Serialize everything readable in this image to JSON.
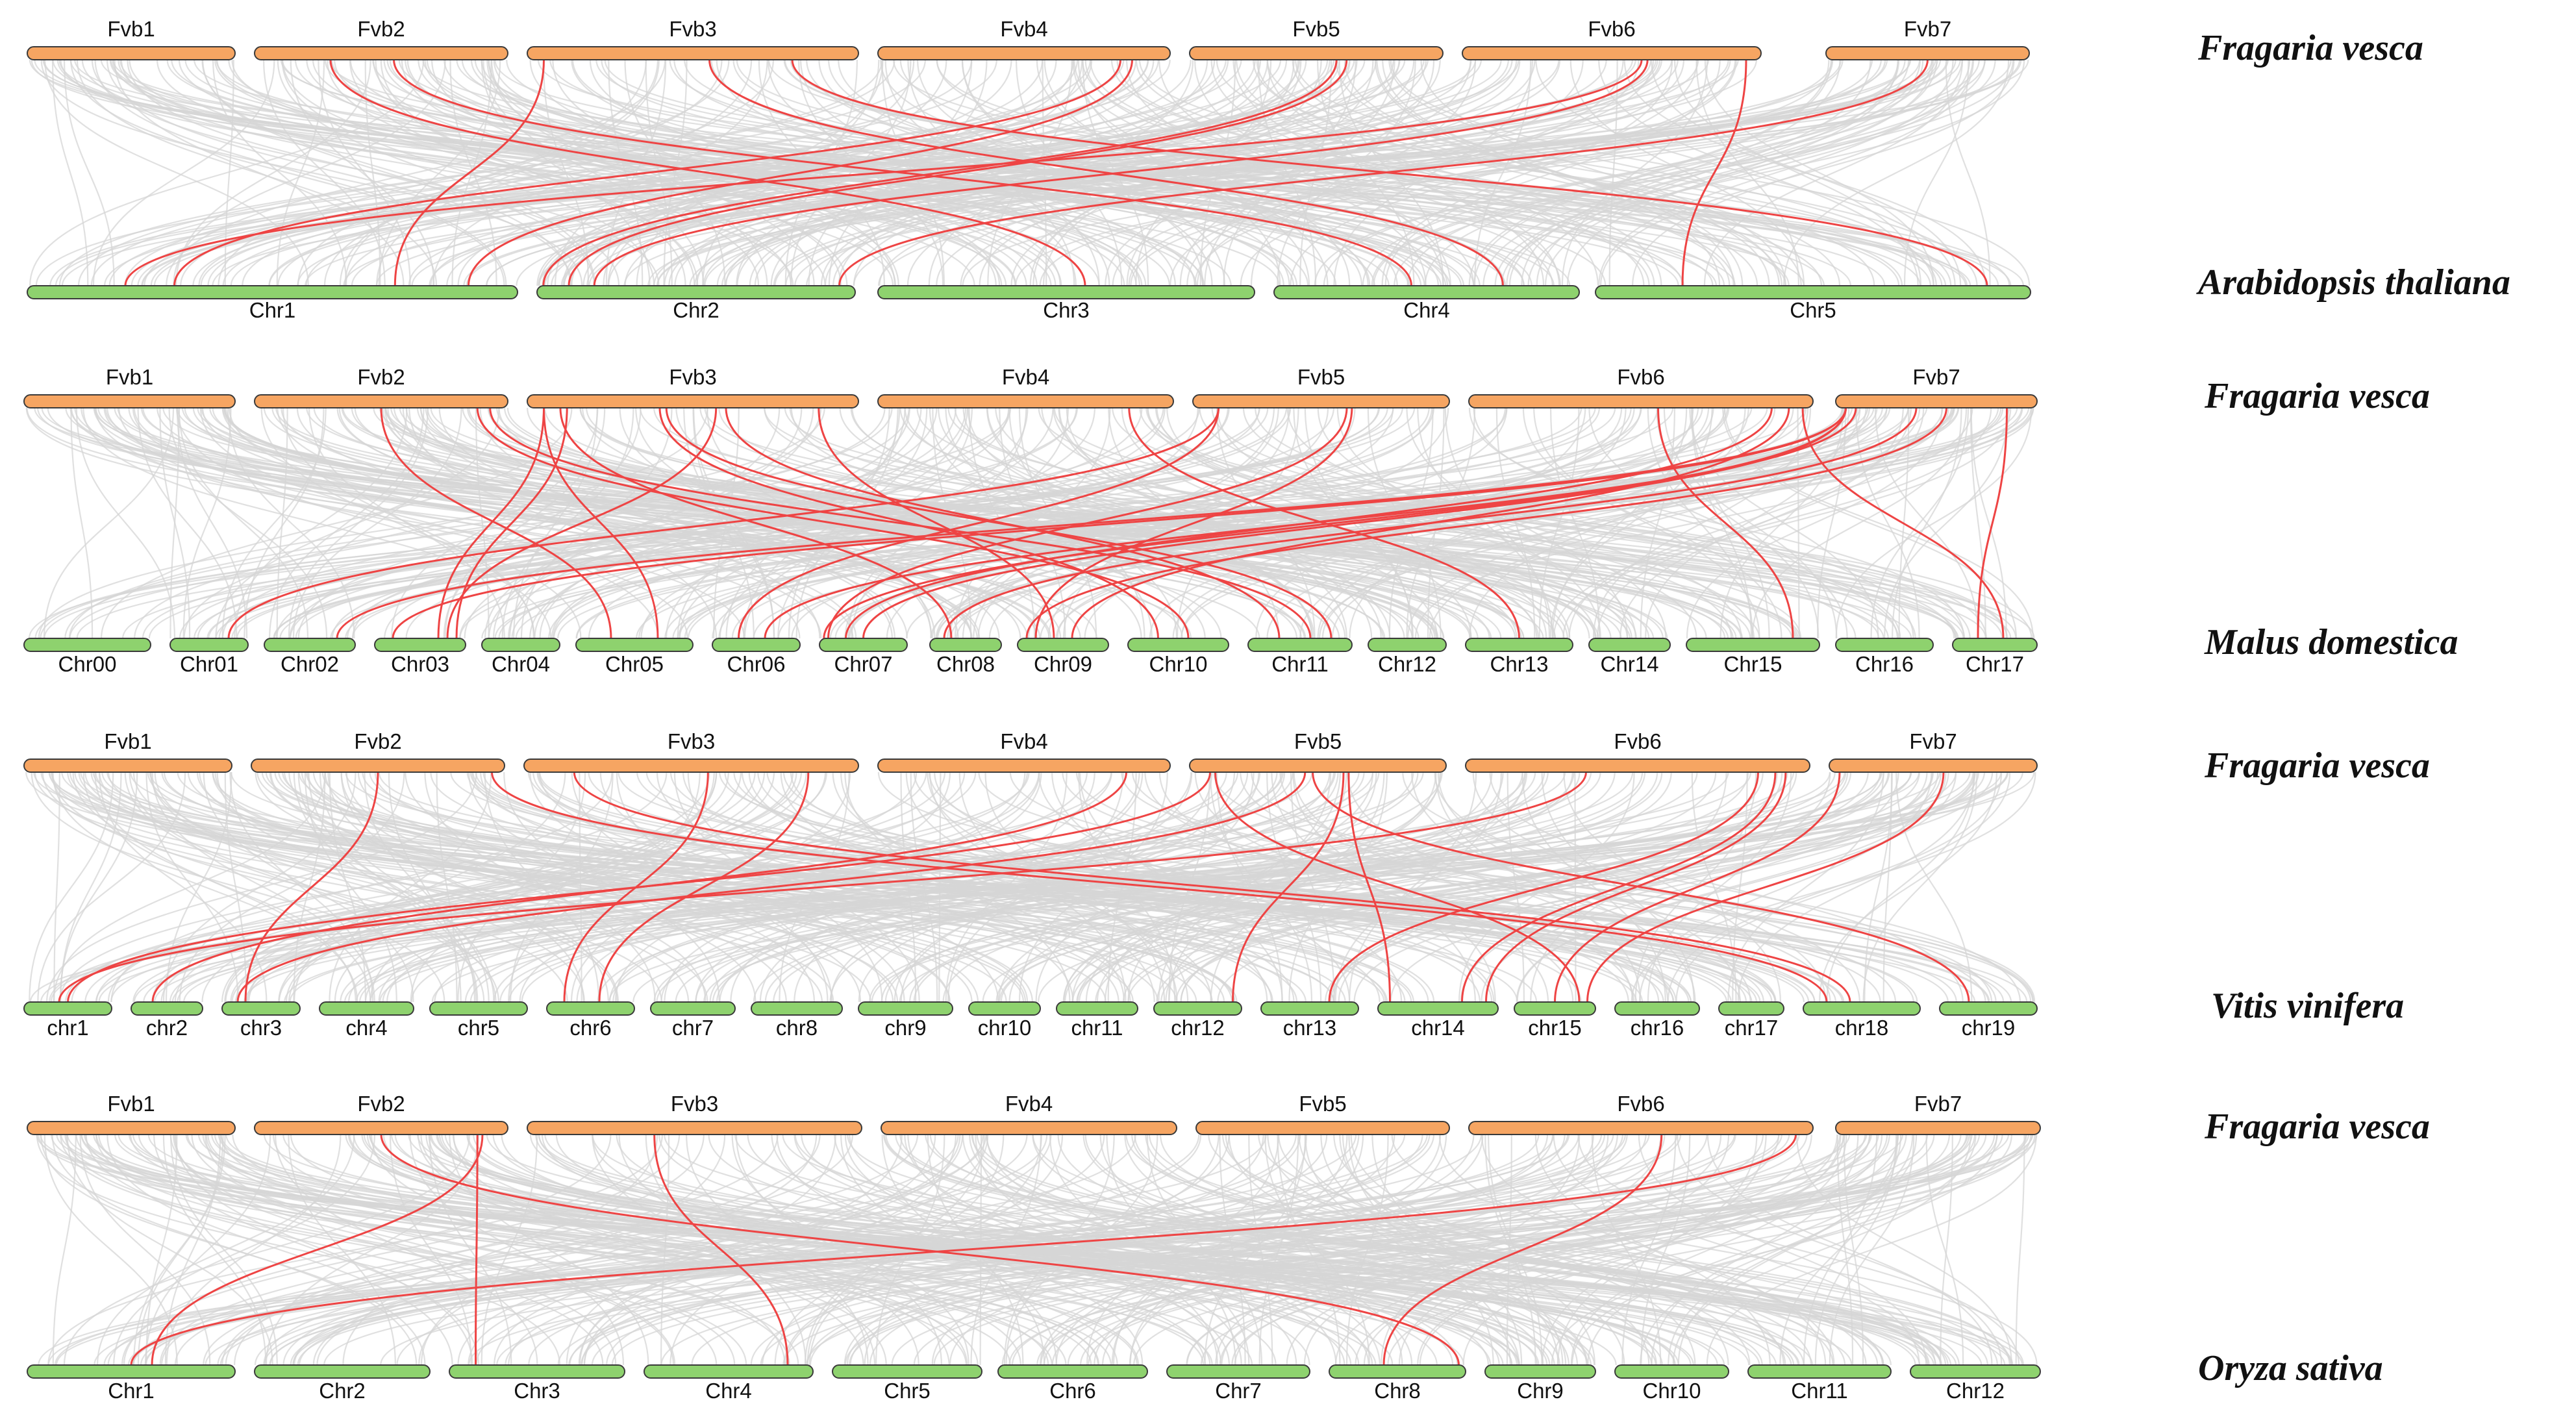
{
  "colors": {
    "top_bar": "#F6A562",
    "bottom_bar": "#8ED26E",
    "bar_outline": "#3a3a3a",
    "background_link": "#d6d6d6",
    "highlight_link": "#EE4444"
  },
  "panels": [
    {
      "top_species": "Fragaria vesca",
      "bottom_species": "Arabidopsis thaliana",
      "top_chromosomes": [
        "Fvb1",
        "Fvb2",
        "Fvb3",
        "Fvb4",
        "Fvb5",
        "Fvb6",
        "Fvb7"
      ],
      "bottom_chromosomes": [
        "Chr1",
        "Chr2",
        "Chr3",
        "Chr4",
        "Chr5"
      ],
      "links": [
        {
          "from": "Fvb2",
          "from_pos": 0.3,
          "to": "Chr3",
          "to_pos": 0.55
        },
        {
          "from": "Fvb2",
          "from_pos": 0.55,
          "to": "Chr4",
          "to_pos": 0.45
        },
        {
          "from": "Fvb3",
          "from_pos": 0.05,
          "to": "Chr1",
          "to_pos": 0.75
        },
        {
          "from": "Fvb3",
          "from_pos": 0.55,
          "to": "Chr4",
          "to_pos": 0.75
        },
        {
          "from": "Fvb3",
          "from_pos": 0.8,
          "to": "Chr5",
          "to_pos": 0.9
        },
        {
          "from": "Fvb4",
          "from_pos": 0.83,
          "to": "Chr1",
          "to_pos": 0.3
        },
        {
          "from": "Fvb4",
          "from_pos": 0.87,
          "to": "Chr1",
          "to_pos": 0.9
        },
        {
          "from": "Fvb5",
          "from_pos": 0.58,
          "to": "Chr2",
          "to_pos": 0.02
        },
        {
          "from": "Fvb5",
          "from_pos": 0.62,
          "to": "Chr2",
          "to_pos": 0.1
        },
        {
          "from": "Fvb6",
          "from_pos": 0.6,
          "to": "Chr1",
          "to_pos": 0.2
        },
        {
          "from": "Fvb6",
          "from_pos": 0.62,
          "to": "Chr2",
          "to_pos": 0.18
        },
        {
          "from": "Fvb6",
          "from_pos": 0.95,
          "to": "Chr5",
          "to_pos": 0.2
        },
        {
          "from": "Fvb7",
          "from_pos": 0.5,
          "to": "Chr2",
          "to_pos": 0.95
        }
      ]
    },
    {
      "top_species": "Fragaria vesca",
      "bottom_species": "Malus domestica",
      "top_chromosomes": [
        "Fvb1",
        "Fvb2",
        "Fvb3",
        "Fvb4",
        "Fvb5",
        "Fvb6",
        "Fvb7"
      ],
      "bottom_chromosomes": [
        "Chr00",
        "Chr01",
        "Chr02",
        "Chr03",
        "Chr04",
        "Chr05",
        "Chr06",
        "Chr07",
        "Chr08",
        "Chr09",
        "Chr10",
        "Chr11",
        "Chr12",
        "Chr13",
        "Chr14",
        "Chr15",
        "Chr16",
        "Chr17"
      ],
      "links": [
        {
          "from": "Fvb2",
          "from_pos": 0.5,
          "to": "Chr05",
          "to_pos": 0.3
        },
        {
          "from": "Fvb2",
          "from_pos": 0.88,
          "to": "Chr10",
          "to_pos": 0.6
        },
        {
          "from": "Fvb2",
          "from_pos": 0.93,
          "to": "Chr11",
          "to_pos": 0.6
        },
        {
          "from": "Fvb3",
          "from_pos": 0.05,
          "to": "Chr03",
          "to_pos": 0.7
        },
        {
          "from": "Fvb3",
          "from_pos": 0.05,
          "to": "Chr05",
          "to_pos": 0.7
        },
        {
          "from": "Fvb3",
          "from_pos": 0.1,
          "to": "Chr08",
          "to_pos": 0.3
        },
        {
          "from": "Fvb3",
          "from_pos": 0.12,
          "to": "Chr03",
          "to_pos": 0.9
        },
        {
          "from": "Fvb3",
          "from_pos": 0.4,
          "to": "Chr10",
          "to_pos": 0.3
        },
        {
          "from": "Fvb3",
          "from_pos": 0.42,
          "to": "Chr11",
          "to_pos": 0.8
        },
        {
          "from": "Fvb3",
          "from_pos": 0.57,
          "to": "Chr03",
          "to_pos": 0.8
        },
        {
          "from": "Fvb3",
          "from_pos": 0.6,
          "to": "Chr11",
          "to_pos": 0.3
        },
        {
          "from": "Fvb3",
          "from_pos": 0.88,
          "to": "Chr09",
          "to_pos": 0.4
        },
        {
          "from": "Fvb4",
          "from_pos": 0.85,
          "to": "Chr13",
          "to_pos": 0.5
        },
        {
          "from": "Fvb5",
          "from_pos": 0.1,
          "to": "Chr01",
          "to_pos": 0.75
        },
        {
          "from": "Fvb5",
          "from_pos": 0.1,
          "to": "Chr06",
          "to_pos": 0.3
        },
        {
          "from": "Fvb5",
          "from_pos": 0.6,
          "to": "Chr07",
          "to_pos": 0.1
        },
        {
          "from": "Fvb5",
          "from_pos": 0.62,
          "to": "Chr09",
          "to_pos": 0.2
        },
        {
          "from": "Fvb6",
          "from_pos": 0.55,
          "to": "Chr15",
          "to_pos": 0.8
        },
        {
          "from": "Fvb6",
          "from_pos": 0.88,
          "to": "Chr07",
          "to_pos": 0.3
        },
        {
          "from": "Fvb6",
          "from_pos": 0.93,
          "to": "Chr09",
          "to_pos": 0.6
        },
        {
          "from": "Fvb6",
          "from_pos": 0.97,
          "to": "Chr17",
          "to_pos": 0.6
        },
        {
          "from": "Fvb7",
          "from_pos": 0.05,
          "to": "Chr02",
          "to_pos": 0.8
        },
        {
          "from": "Fvb7",
          "from_pos": 0.05,
          "to": "Chr03",
          "to_pos": 0.2
        },
        {
          "from": "Fvb7",
          "from_pos": 0.05,
          "to": "Chr07",
          "to_pos": 0.05
        },
        {
          "from": "Fvb7",
          "from_pos": 0.05,
          "to": "Chr07",
          "to_pos": 0.5
        },
        {
          "from": "Fvb7",
          "from_pos": 0.1,
          "to": "Chr06",
          "to_pos": 0.6
        },
        {
          "from": "Fvb7",
          "from_pos": 0.4,
          "to": "Chr08",
          "to_pos": 0.2
        },
        {
          "from": "Fvb7",
          "from_pos": 0.55,
          "to": "Chr09",
          "to_pos": 0.1
        },
        {
          "from": "Fvb7",
          "from_pos": 0.85,
          "to": "Chr17",
          "to_pos": 0.3
        }
      ]
    },
    {
      "top_species": "Fragaria vesca",
      "bottom_species": "Vitis vinifera",
      "top_chromosomes": [
        "Fvb1",
        "Fvb2",
        "Fvb3",
        "Fvb4",
        "Fvb5",
        "Fvb6",
        "Fvb7"
      ],
      "bottom_chromosomes": [
        "chr1",
        "chr2",
        "chr3",
        "chr4",
        "chr5",
        "chr6",
        "chr7",
        "chr8",
        "chr9",
        "chr10",
        "chr11",
        "chr12",
        "chr13",
        "chr14",
        "chr15",
        "chr16",
        "chr17",
        "chr18",
        "chr19"
      ],
      "links": [
        {
          "from": "Fvb2",
          "from_pos": 0.5,
          "to": "chr3",
          "to_pos": 0.3
        },
        {
          "from": "Fvb2",
          "from_pos": 0.95,
          "to": "chr18",
          "to_pos": 0.2
        },
        {
          "from": "Fvb3",
          "from_pos": 0.15,
          "to": "chr18",
          "to_pos": 0.4
        },
        {
          "from": "Fvb3",
          "from_pos": 0.55,
          "to": "chr6",
          "to_pos": 0.2
        },
        {
          "from": "Fvb3",
          "from_pos": 0.85,
          "to": "chr6",
          "to_pos": 0.6
        },
        {
          "from": "Fvb4",
          "from_pos": 0.85,
          "to": "chr2",
          "to_pos": 0.3
        },
        {
          "from": "Fvb5",
          "from_pos": 0.08,
          "to": "chr1",
          "to_pos": 0.5
        },
        {
          "from": "Fvb5",
          "from_pos": 0.1,
          "to": "chr15",
          "to_pos": 0.8
        },
        {
          "from": "Fvb5",
          "from_pos": 0.45,
          "to": "chr3",
          "to_pos": 0.2
        },
        {
          "from": "Fvb5",
          "from_pos": 0.48,
          "to": "chr19",
          "to_pos": 0.3
        },
        {
          "from": "Fvb5",
          "from_pos": 0.6,
          "to": "chr12",
          "to_pos": 0.9
        },
        {
          "from": "Fvb5",
          "from_pos": 0.62,
          "to": "chr14",
          "to_pos": 0.1
        },
        {
          "from": "Fvb6",
          "from_pos": 0.35,
          "to": "chr1",
          "to_pos": 0.4
        },
        {
          "from": "Fvb6",
          "from_pos": 0.85,
          "to": "chr13",
          "to_pos": 0.7
        },
        {
          "from": "Fvb6",
          "from_pos": 0.9,
          "to": "chr14",
          "to_pos": 0.7
        },
        {
          "from": "Fvb6",
          "from_pos": 0.93,
          "to": "chr14",
          "to_pos": 0.9
        },
        {
          "from": "Fvb7",
          "from_pos": 0.05,
          "to": "chr15",
          "to_pos": 0.5
        },
        {
          "from": "Fvb7",
          "from_pos": 0.55,
          "to": "chr15",
          "to_pos": 0.9
        }
      ]
    },
    {
      "top_species": "Fragaria vesca",
      "bottom_species": "Oryza sativa",
      "top_chromosomes": [
        "Fvb1",
        "Fvb2",
        "Fvb3",
        "Fvb4",
        "Fvb5",
        "Fvb6",
        "Fvb7"
      ],
      "bottom_chromosomes": [
        "Chr1",
        "Chr2",
        "Chr3",
        "Chr4",
        "Chr5",
        "Chr6",
        "Chr7",
        "Chr8",
        "Chr9",
        "Chr10",
        "Chr11",
        "Chr12"
      ],
      "links": [
        {
          "from": "Fvb2",
          "from_pos": 0.5,
          "to": "Chr8",
          "to_pos": 0.95
        },
        {
          "from": "Fvb2",
          "from_pos": 0.9,
          "to": "Chr1",
          "to_pos": 0.6
        },
        {
          "from": "Fvb2",
          "from_pos": 0.88,
          "to": "Chr3",
          "to_pos": 0.15
        },
        {
          "from": "Fvb3",
          "from_pos": 0.38,
          "to": "Chr4",
          "to_pos": 0.85
        },
        {
          "from": "Fvb6",
          "from_pos": 0.56,
          "to": "Chr8",
          "to_pos": 0.4
        },
        {
          "from": "Fvb6",
          "from_pos": 0.95,
          "to": "Chr1",
          "to_pos": 0.5
        }
      ]
    }
  ]
}
